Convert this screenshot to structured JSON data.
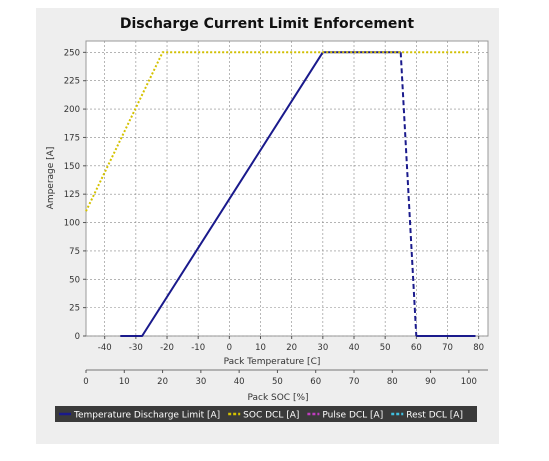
{
  "chart_data": {
    "type": "line",
    "title": "Discharge Current Limit Enforcement",
    "ylabel": "Amperage [A]",
    "ylim": [
      0,
      260
    ],
    "yticks": [
      0,
      25,
      50,
      75,
      100,
      125,
      150,
      175,
      200,
      225,
      250
    ],
    "grid": true,
    "x_axes": [
      {
        "id": "temperature",
        "label": "Pack Temperature [C]",
        "range": [
          -46,
          83
        ],
        "ticks": [
          -40,
          -30,
          -20,
          -10,
          0,
          10,
          20,
          30,
          40,
          50,
          60,
          70,
          80
        ]
      },
      {
        "id": "soc",
        "label": "Pack SOC [%]",
        "range": [
          0,
          105
        ],
        "ticks": [
          0,
          10,
          20,
          30,
          40,
          50,
          60,
          70,
          80,
          90,
          100
        ]
      }
    ],
    "series": [
      {
        "name": "Temperature Discharge Limit [A]",
        "axis": "temperature",
        "color": "#1a1a8c",
        "style": "solid",
        "x": [
          -35,
          -31,
          -28,
          30
        ],
        "y": [
          0,
          0,
          0,
          250
        ]
      },
      {
        "name": "Temperature Discharge Limit [A]",
        "axis": "temperature",
        "color": "#1a1a8c",
        "style": "solid",
        "x": [
          30,
          55
        ],
        "y": [
          250,
          250
        ]
      },
      {
        "name": "Temperature Discharge Limit [A]",
        "axis": "temperature",
        "color": "#1a1a8c",
        "style": "dashed",
        "x": [
          55,
          60
        ],
        "y": [
          250,
          0
        ]
      },
      {
        "name": "Temperature Discharge Limit [A]",
        "axis": "temperature",
        "color": "#1a1a8c",
        "style": "solid",
        "x": [
          60,
          79
        ],
        "y": [
          0,
          0
        ]
      },
      {
        "name": "SOC DCL [A]",
        "axis": "soc",
        "color": "#d4c200",
        "style": "dotted",
        "x": [
          0,
          20,
          100
        ],
        "y": [
          110,
          250,
          250
        ]
      }
    ],
    "legend": {
      "position": "bottom",
      "entries": [
        {
          "label": "Temperature Discharge Limit [A]",
          "color": "#1a1a8c"
        },
        {
          "label": "SOC DCL [A]",
          "color": "#d4c200"
        },
        {
          "label": "Pulse DCL [A]",
          "color": "#c03cc0"
        },
        {
          "label": "Rest DCL [A]",
          "color": "#40c0e0"
        }
      ]
    }
  }
}
